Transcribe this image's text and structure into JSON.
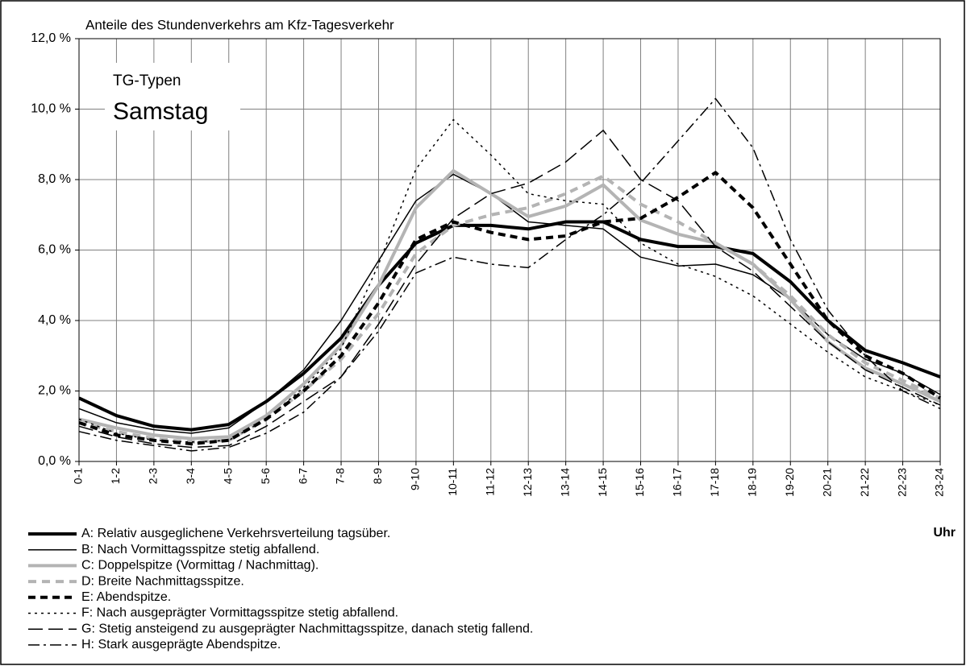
{
  "chart_data": {
    "type": "line",
    "title": "Anteile des Stundenverkehrs am Kfz-Tagesverkehr",
    "box_title": "TG-Typen",
    "box_subtitle": "Samstag",
    "x_label": "Uhr",
    "categories": [
      "0-1",
      "1-2",
      "2-3",
      "3-4",
      "4-5",
      "5-6",
      "6-7",
      "7-8",
      "8-9",
      "9-10",
      "10-11",
      "11-12",
      "12-13",
      "13-14",
      "14-15",
      "15-16",
      "16-17",
      "17-18",
      "18-19",
      "19-20",
      "20-21",
      "21-22",
      "22-23",
      "23-24"
    ],
    "ylim": [
      0,
      12
    ],
    "yticks": [
      {
        "value": 0,
        "label": "0,0 %"
      },
      {
        "value": 2,
        "label": "2,0 %"
      },
      {
        "value": 4,
        "label": "4,0 %"
      },
      {
        "value": 6,
        "label": "6,0 %"
      },
      {
        "value": 8,
        "label": "8,0 %"
      },
      {
        "value": 10,
        "label": "10,0 %"
      },
      {
        "value": 12,
        "label": "12,0 %"
      }
    ],
    "grid": true,
    "series": [
      {
        "name": "A: Relativ ausgeglichene Verkehrsverteilung tagsüber.",
        "color": "#000000",
        "values": [
          1.8,
          1.3,
          1.0,
          0.9,
          1.05,
          1.7,
          2.5,
          3.5,
          5.0,
          6.2,
          6.7,
          6.7,
          6.6,
          6.8,
          6.8,
          6.3,
          6.1,
          6.1,
          5.9,
          5.1,
          4.0,
          3.15,
          2.8,
          2.4
        ]
      },
      {
        "name": "B: Nach Vormittagsspitze stetig abfallend.",
        "color": "#000000",
        "values": [
          1.5,
          1.1,
          0.9,
          0.8,
          0.95,
          1.7,
          2.6,
          4.0,
          5.7,
          7.4,
          8.15,
          7.6,
          6.8,
          6.7,
          6.6,
          5.8,
          5.55,
          5.6,
          5.3,
          4.6,
          3.6,
          2.9,
          2.5,
          1.9
        ]
      },
      {
        "name": "C: Doppelspitze (Vormittag / Nachmittag).",
        "color": "#b4b4b4",
        "values": [
          1.2,
          0.95,
          0.75,
          0.65,
          0.7,
          1.3,
          2.2,
          3.3,
          5.0,
          7.2,
          8.25,
          7.6,
          6.95,
          7.25,
          7.85,
          6.85,
          6.45,
          6.2,
          5.6,
          4.6,
          3.4,
          2.65,
          2.2,
          1.7
        ]
      },
      {
        "name": "D: Breite Nachmittagsspitze.",
        "color": "#b4b4b4",
        "values": [
          1.1,
          0.85,
          0.65,
          0.55,
          0.6,
          1.2,
          2.0,
          2.9,
          4.2,
          5.9,
          6.7,
          7.0,
          7.2,
          7.6,
          8.1,
          7.3,
          6.8,
          6.2,
          5.6,
          4.7,
          3.6,
          2.8,
          2.3,
          1.8
        ]
      },
      {
        "name": "E: Abendspitze.",
        "color": "#000000",
        "values": [
          1.1,
          0.75,
          0.6,
          0.5,
          0.6,
          1.2,
          2.0,
          3.0,
          4.5,
          6.3,
          6.8,
          6.5,
          6.3,
          6.4,
          6.8,
          6.9,
          7.5,
          8.2,
          7.2,
          5.6,
          4.0,
          3.0,
          2.5,
          1.8
        ]
      },
      {
        "name": "F: Nach ausgeprägter Vormittagsspitze stetig abfallend.",
        "color": "#000000",
        "values": [
          1.2,
          0.8,
          0.6,
          0.55,
          0.6,
          1.2,
          2.1,
          3.2,
          5.6,
          8.3,
          9.7,
          8.7,
          7.6,
          7.4,
          7.3,
          6.2,
          5.6,
          5.25,
          4.7,
          3.9,
          3.1,
          2.4,
          2.0,
          1.6
        ]
      },
      {
        "name": "G: Stetig ansteigend zu ausgeprägter Nachmittagsspitze, danach stetig fallend.",
        "color": "#000000",
        "values": [
          1.0,
          0.7,
          0.5,
          0.4,
          0.45,
          1.0,
          1.7,
          2.4,
          3.9,
          5.6,
          6.9,
          7.6,
          7.9,
          8.5,
          9.4,
          8.0,
          7.4,
          6.1,
          5.4,
          4.4,
          3.4,
          2.6,
          2.1,
          1.6
        ]
      },
      {
        "name": "H: Stark ausgeprägte Abendspitze.",
        "color": "#000000",
        "values": [
          0.85,
          0.6,
          0.45,
          0.3,
          0.4,
          0.8,
          1.4,
          2.4,
          3.7,
          5.35,
          5.8,
          5.6,
          5.5,
          6.3,
          7.0,
          7.9,
          9.1,
          10.3,
          8.9,
          6.3,
          4.3,
          3.0,
          2.0,
          1.5
        ]
      }
    ]
  }
}
